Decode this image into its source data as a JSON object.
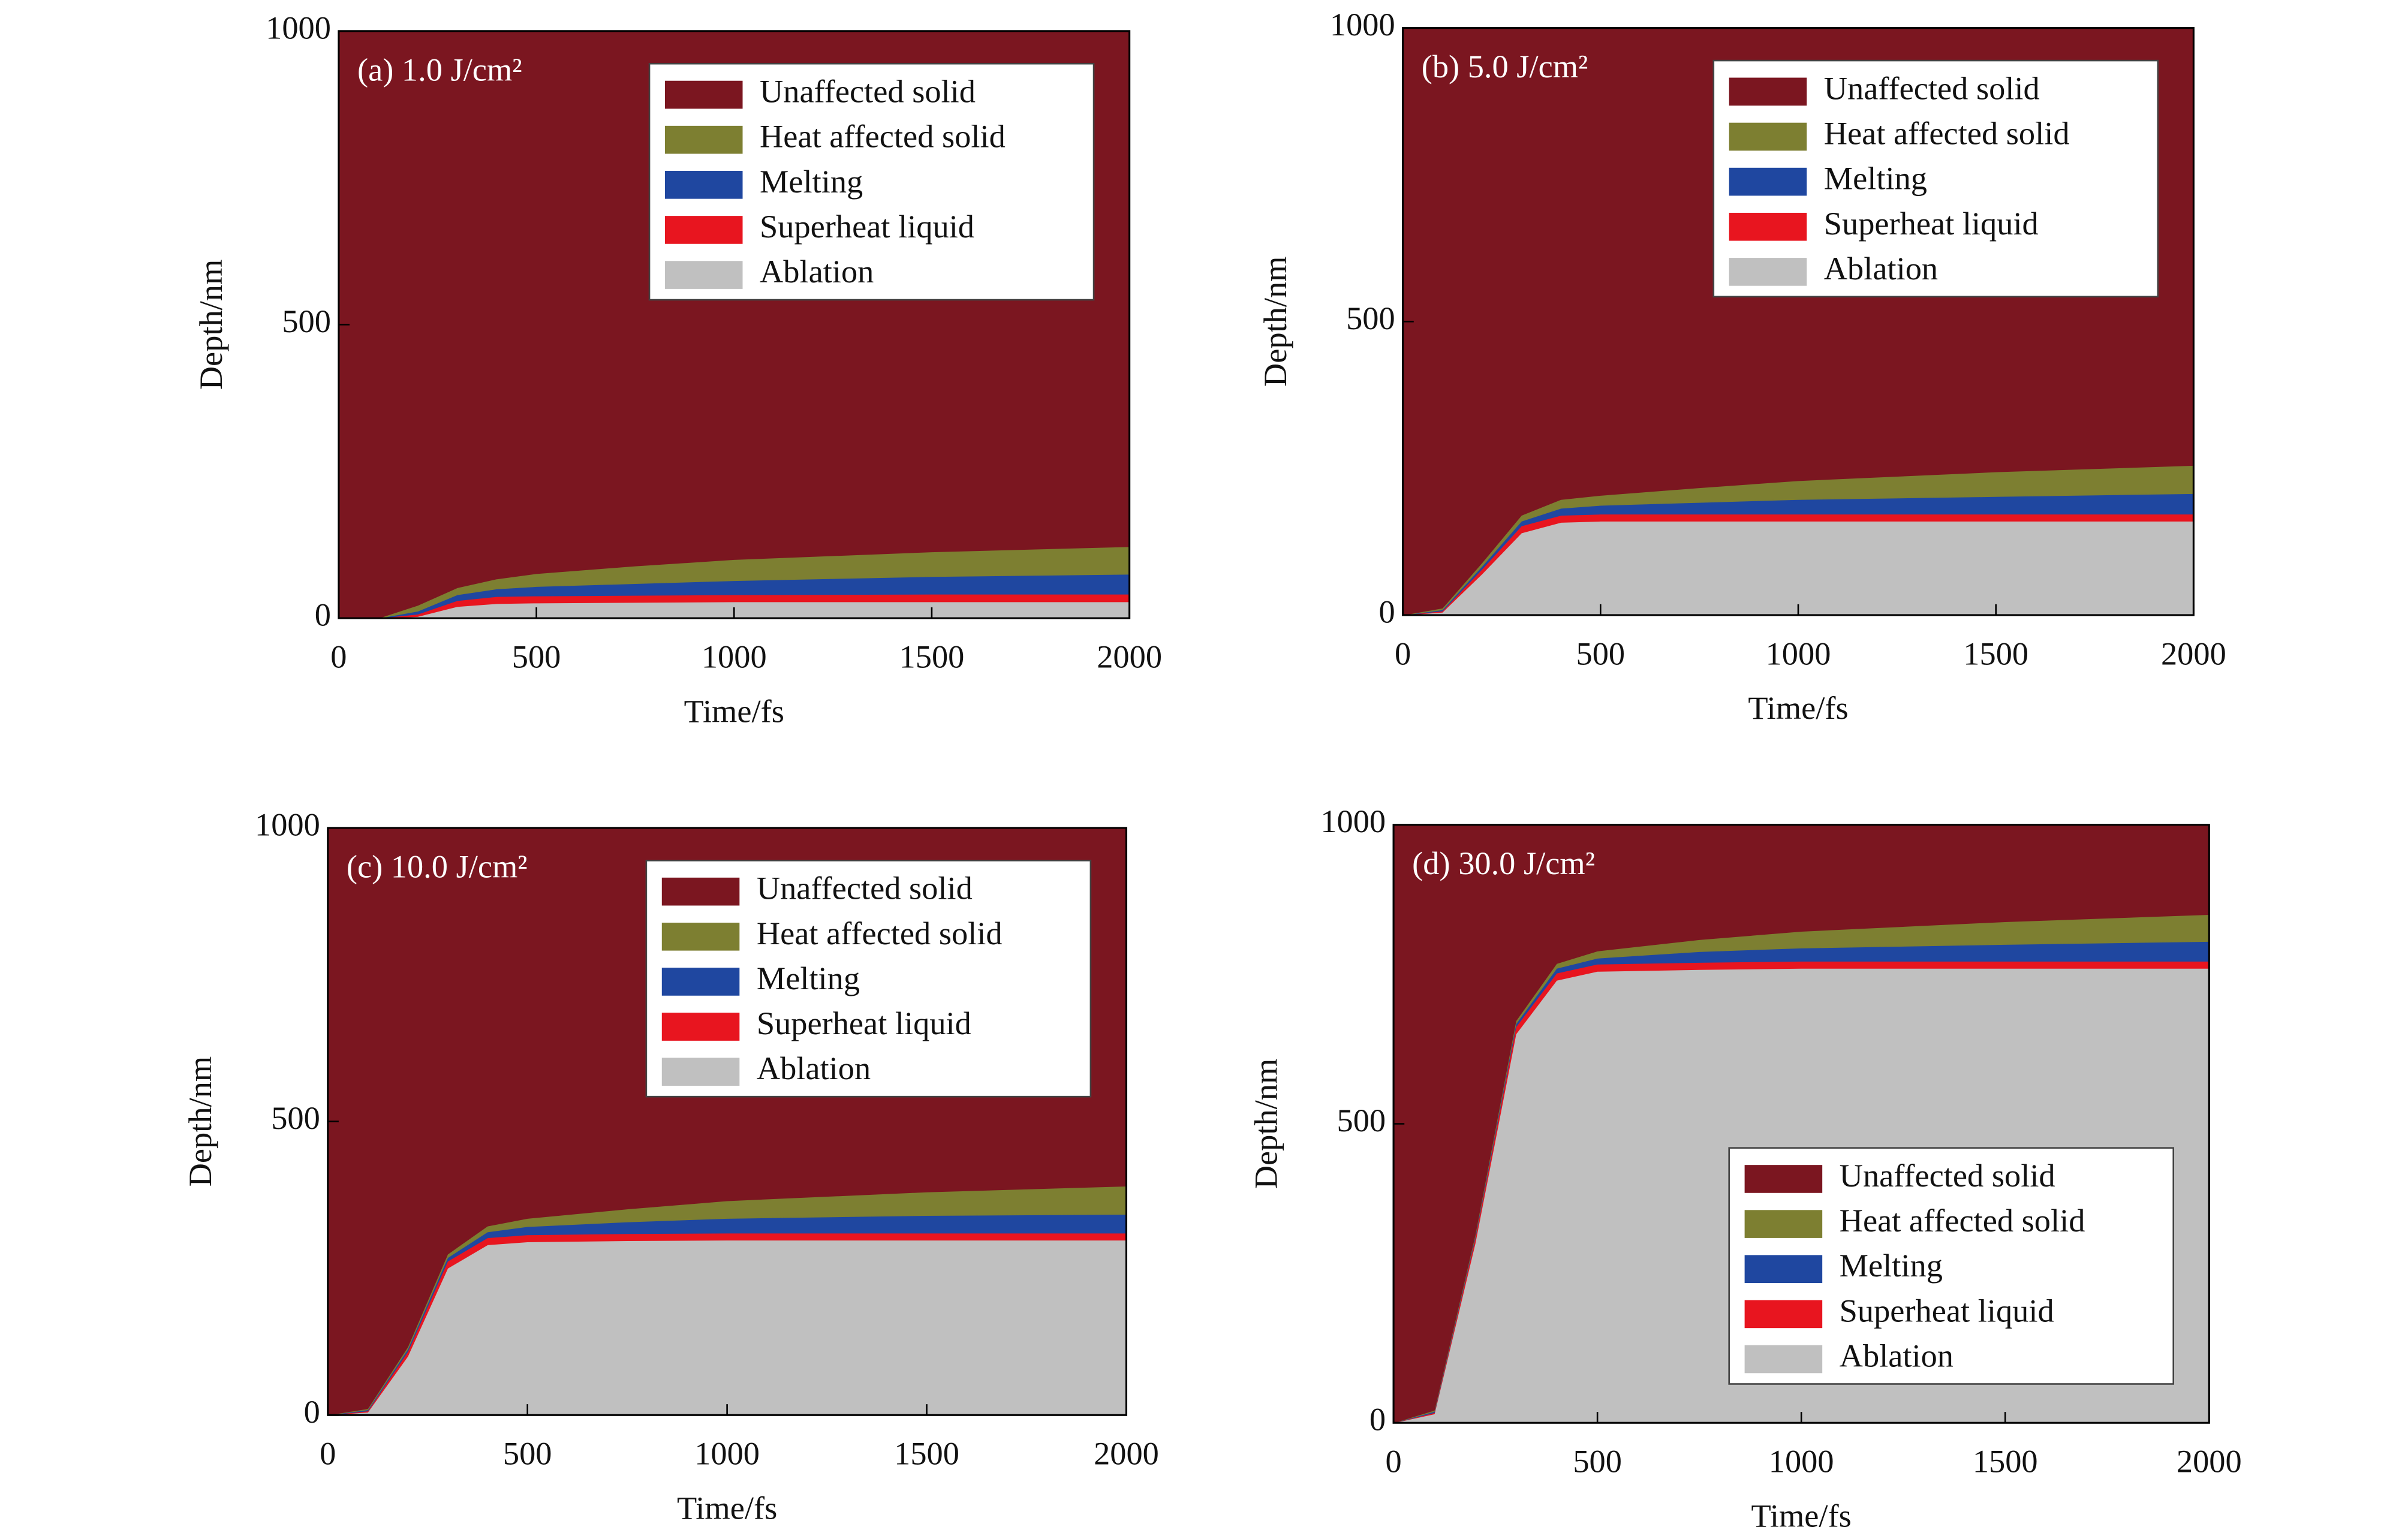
{
  "chart_data": [
    {
      "type": "stacked-area",
      "annotation": "(a) 1.0 J/cm²",
      "xlabel": "Time/fs",
      "ylabel": "Depth/nm",
      "x": [
        0,
        100,
        200,
        300,
        400,
        500,
        750,
        1000,
        1500,
        2000
      ],
      "xlim": [
        0,
        2000
      ],
      "ylim": [
        0,
        1000
      ],
      "xticks": [
        0,
        500,
        1000,
        1500,
        2000
      ],
      "yticks": [
        0,
        500,
        1000
      ],
      "legend": "upper right",
      "series": [
        {
          "name": "Unaffected solid",
          "color": "#7b1620",
          "values": [
            1000,
            1000,
            978,
            948,
            933,
            924,
            911,
            900,
            887,
            878
          ]
        },
        {
          "name": "Heat affected solid",
          "color": "#7d7f31",
          "values": [
            0,
            0,
            10,
            12,
            17,
            22,
            30,
            36,
            42,
            47
          ]
        },
        {
          "name": "Melting",
          "color": "#1f47a0",
          "values": [
            0,
            0,
            5,
            10,
            13,
            16,
            20,
            24,
            30,
            34
          ]
        },
        {
          "name": "Superheat liquid",
          "color": "#e8151f",
          "values": [
            0,
            0,
            4,
            10,
            12,
            12,
            12,
            12,
            13,
            13
          ]
        },
        {
          "name": "Ablation",
          "color": "#c0c0c0",
          "values": [
            0,
            0,
            3,
            20,
            25,
            26,
            27,
            28,
            28,
            28
          ]
        }
      ]
    },
    {
      "type": "stacked-area",
      "annotation": "(b) 5.0 J/cm²",
      "xlabel": "Time/fs",
      "ylabel": "Depth/nm",
      "x": [
        0,
        100,
        200,
        300,
        400,
        500,
        750,
        1000,
        1500,
        2000
      ],
      "xlim": [
        0,
        2000
      ],
      "ylim": [
        0,
        1000
      ],
      "xticks": [
        0,
        500,
        1000,
        1500,
        2000
      ],
      "yticks": [
        0,
        500,
        1000
      ],
      "legend": "upper right",
      "series": [
        {
          "name": "Unaffected solid",
          "color": "#7b1620",
          "values": [
            1000,
            988,
            911,
            830,
            803,
            796,
            783,
            771,
            756,
            745
          ]
        },
        {
          "name": "Heat affected solid",
          "color": "#7d7f31",
          "values": [
            0,
            3,
            6,
            10,
            15,
            17,
            25,
            32,
            42,
            48
          ]
        },
        {
          "name": "Melting",
          "color": "#1f47a0",
          "values": [
            0,
            2,
            5,
            8,
            12,
            15,
            20,
            25,
            30,
            35
          ]
        },
        {
          "name": "Superheat liquid",
          "color": "#e8151f",
          "values": [
            0,
            2,
            8,
            12,
            12,
            12,
            12,
            12,
            12,
            12
          ]
        },
        {
          "name": "Ablation",
          "color": "#c0c0c0",
          "values": [
            0,
            5,
            70,
            140,
            158,
            160,
            160,
            160,
            160,
            160
          ]
        }
      ]
    },
    {
      "type": "stacked-area",
      "annotation": "(c) 10.0 J/cm²",
      "xlabel": "Time/fs",
      "ylabel": "Depth/nm",
      "x": [
        0,
        100,
        200,
        300,
        400,
        500,
        750,
        1000,
        1500,
        2000
      ],
      "xlim": [
        0,
        2000
      ],
      "ylim": [
        0,
        1000
      ],
      "xticks": [
        0,
        500,
        1000,
        1500,
        2000
      ],
      "yticks": [
        0,
        500,
        1000
      ],
      "legend": "upper right",
      "series": [
        {
          "name": "Unaffected solid",
          "color": "#7b1620",
          "values": [
            1000,
            989,
            884,
            726,
            678,
            665,
            649,
            635,
            620,
            610
          ]
        },
        {
          "name": "Heat affected solid",
          "color": "#7d7f31",
          "values": [
            0,
            2,
            4,
            6,
            10,
            14,
            22,
            30,
            40,
            48
          ]
        },
        {
          "name": "Melting",
          "color": "#1f47a0",
          "values": [
            0,
            2,
            4,
            6,
            10,
            14,
            20,
            25,
            30,
            32
          ]
        },
        {
          "name": "Superheat liquid",
          "color": "#e8151f",
          "values": [
            0,
            2,
            8,
            12,
            12,
            12,
            12,
            12,
            12,
            12
          ]
        },
        {
          "name": "Ablation",
          "color": "#c0c0c0",
          "values": [
            0,
            5,
            100,
            250,
            290,
            295,
            297,
            298,
            298,
            298
          ]
        }
      ]
    },
    {
      "type": "stacked-area",
      "annotation": "(d) 30.0 J/cm²",
      "xlabel": "Time/fs",
      "ylabel": "Depth/nm",
      "x": [
        0,
        100,
        200,
        300,
        400,
        500,
        750,
        1000,
        1500,
        2000
      ],
      "xlim": [
        0,
        2000
      ],
      "ylim": [
        0,
        1000
      ],
      "xticks": [
        0,
        500,
        1000,
        1500,
        2000
      ],
      "yticks": [
        0,
        500,
        1000
      ],
      "legend": "lower right",
      "series": [
        {
          "name": "Unaffected solid",
          "color": "#7b1620",
          "values": [
            1000,
            979,
            686,
            328,
            232,
            211,
            192,
            178,
            162,
            150
          ]
        },
        {
          "name": "Heat affected solid",
          "color": "#7d7f31",
          "values": [
            0,
            2,
            3,
            5,
            8,
            12,
            20,
            28,
            38,
            45
          ]
        },
        {
          "name": "Melting",
          "color": "#1f47a0",
          "values": [
            0,
            2,
            3,
            5,
            8,
            10,
            18,
            22,
            28,
            33
          ]
        },
        {
          "name": "Superheat liquid",
          "color": "#e8151f",
          "values": [
            0,
            2,
            8,
            12,
            12,
            12,
            12,
            12,
            12,
            12
          ]
        },
        {
          "name": "Ablation",
          "color": "#c0c0c0",
          "values": [
            0,
            15,
            300,
            650,
            740,
            755,
            758,
            760,
            760,
            760
          ]
        }
      ]
    }
  ]
}
